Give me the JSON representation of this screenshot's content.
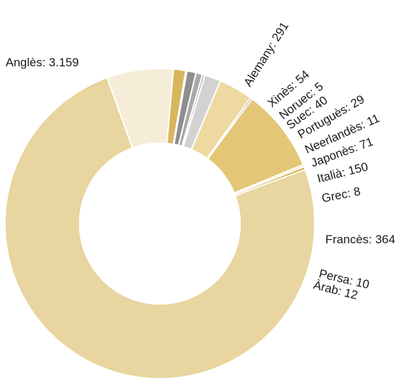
{
  "chart_data": {
    "type": "pie",
    "variant": "donut",
    "title": "",
    "slices": [
      {
        "label": "Anglès: 3.159",
        "value": 3159,
        "color": "#e8d59f"
      },
      {
        "label": "Alemany: 291",
        "value": 291,
        "color": "#f6edd9"
      },
      {
        "label": "Xinès: 54",
        "value": 54,
        "color": "#d8b65b"
      },
      {
        "label": "Noruec: 5",
        "value": 5,
        "color": "#dedede"
      },
      {
        "label": "Suec: 40",
        "value": 40,
        "color": "#8e8e8e"
      },
      {
        "label": "Portuguès: 29",
        "value": 29,
        "color": "#a9a9a9"
      },
      {
        "label": "Neerlandès: 11",
        "value": 11,
        "color": "#b9b9b9"
      },
      {
        "label": "Japonès: 71",
        "value": 71,
        "color": "#d2d2d2"
      },
      {
        "label": "Italià: 150",
        "value": 150,
        "color": "#eed9a0"
      },
      {
        "label": "Grec: 8",
        "value": 8,
        "color": "#555555"
      },
      {
        "label": "Francès: 364",
        "value": 364,
        "color": "#e4c676"
      },
      {
        "label": "Persa: 10",
        "value": 10,
        "color": "#f1e2b7"
      },
      {
        "label": "Àrab: 12",
        "value": 12,
        "color": "#cda92c"
      }
    ]
  }
}
